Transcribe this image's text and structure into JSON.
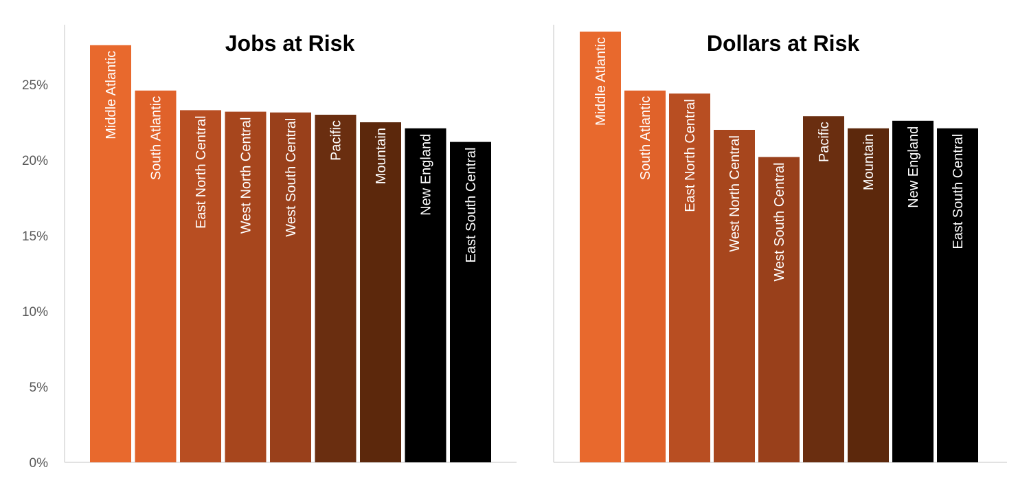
{
  "chart_data": [
    {
      "type": "bar",
      "title": "Jobs at Risk",
      "categories": [
        "Middle Atlantic",
        "South Atlantic",
        "East North Central",
        "West North Central",
        "West South Central",
        "Pacific",
        "Mountain",
        "New England",
        "East South Central"
      ],
      "values": [
        27.6,
        24.6,
        23.3,
        23.2,
        23.15,
        23.0,
        22.5,
        22.1,
        21.2
      ],
      "colors": [
        "#e8692d",
        "#e0622a",
        "#b84e22",
        "#a7461d",
        "#99401b",
        "#6a2e10",
        "#5c280c",
        "#000000",
        "#000000"
      ],
      "ylim": [
        0,
        30
      ],
      "yticks": [
        0,
        5,
        10,
        15,
        20,
        25
      ],
      "ytick_labels": [
        "0%",
        "5%",
        "10%",
        "15%",
        "20%",
        "25%"
      ],
      "grid": false,
      "legend": "none"
    },
    {
      "type": "bar",
      "title": "Dollars at Risk",
      "categories": [
        "Middle Atlantic",
        "South Atlantic",
        "East North Central",
        "West North Central",
        "West South Central",
        "Pacific",
        "Mountain",
        "New England",
        "East South Central"
      ],
      "values": [
        28.5,
        24.6,
        24.4,
        22.0,
        20.2,
        22.9,
        22.1,
        22.6,
        22.1
      ],
      "colors": [
        "#e8692d",
        "#e0622a",
        "#b84e22",
        "#a7461d",
        "#99401b",
        "#6a2e10",
        "#5c280c",
        "#000000",
        "#000000"
      ],
      "ylim": [
        0,
        30
      ],
      "grid": false,
      "legend": "none"
    }
  ]
}
